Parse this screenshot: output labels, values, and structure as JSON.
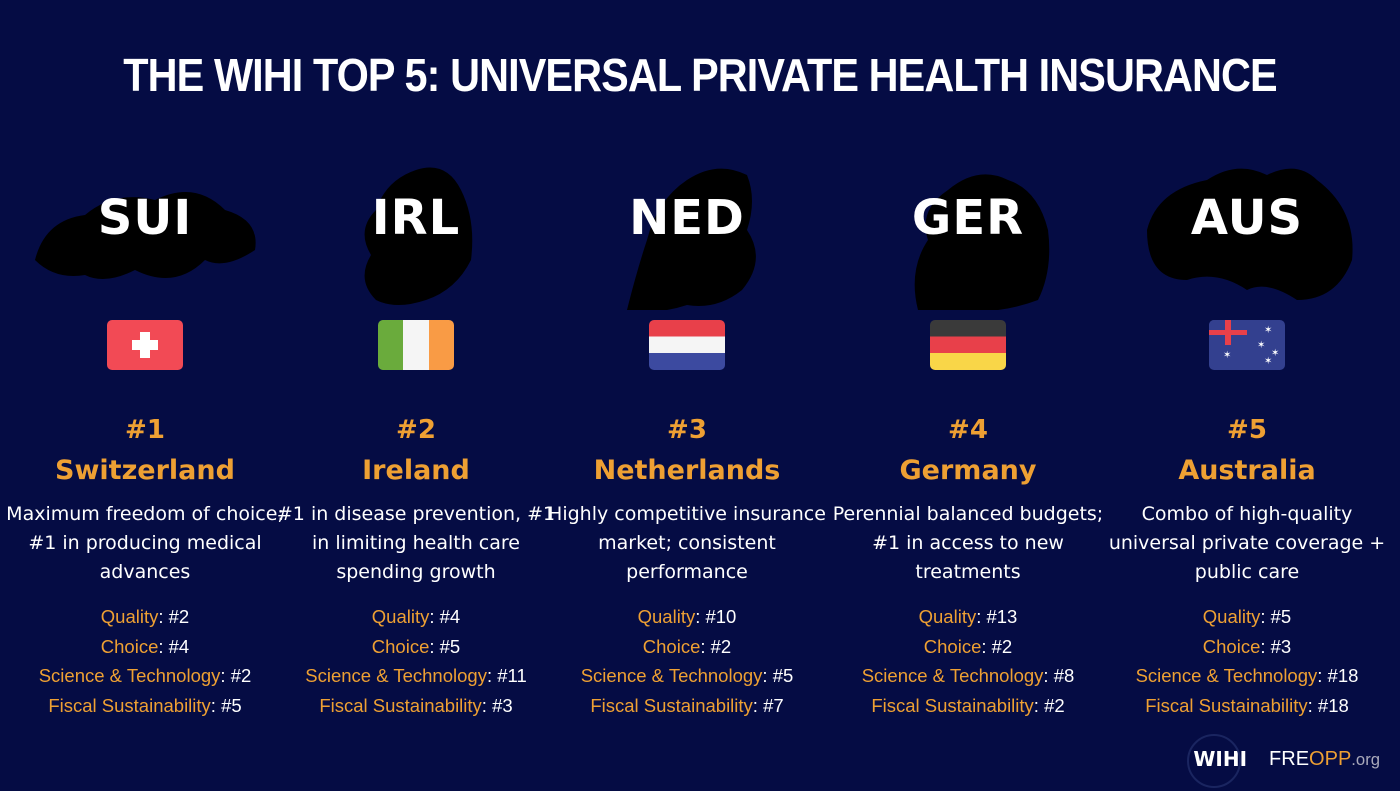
{
  "title": "THE WIHI TOP 5: UNIVERSAL PRIVATE HEALTH INSURANCE",
  "countries": [
    {
      "code": "SUI",
      "rank": "#1",
      "name": "Switzerland",
      "desc": "Maximum freedom of choice; #1 in producing medical advances",
      "quality": "#2",
      "choice": "#4",
      "science": "#2",
      "fiscal": "#5"
    },
    {
      "code": "IRL",
      "rank": "#2",
      "name": "Ireland",
      "desc": "#1 in disease prevention, #1 in limiting health care spending growth",
      "quality": "#4",
      "choice": "#5",
      "science": "#11",
      "fiscal": "#3"
    },
    {
      "code": "NED",
      "rank": "#3",
      "name": "Netherlands",
      "desc": "Highly competitive insurance market; consistent performance",
      "quality": "#10",
      "choice": "#2",
      "science": "#5",
      "fiscal": "#7"
    },
    {
      "code": "GER",
      "rank": "#4",
      "name": "Germany",
      "desc": "Perennial balanced budgets; #1 in access to new treatments",
      "quality": "#13",
      "choice": "#2",
      "science": "#8",
      "fiscal": "#2"
    },
    {
      "code": "AUS",
      "rank": "#5",
      "name": "Australia",
      "desc": "Combo of high-quality universal private coverage + public care",
      "quality": "#5",
      "choice": "#3",
      "science": "#18",
      "fiscal": "#18"
    }
  ],
  "labels": {
    "quality": "Quality",
    "choice": "Choice",
    "science": "Science & Technology",
    "fiscal": "Fiscal Sustainability"
  },
  "logos": {
    "wihi": "WIHI",
    "freopp_a": "FRE",
    "freopp_b": "OPP",
    "freopp_c": ".org"
  },
  "colors": {
    "background": "#050c44",
    "accent": "#eea033"
  }
}
